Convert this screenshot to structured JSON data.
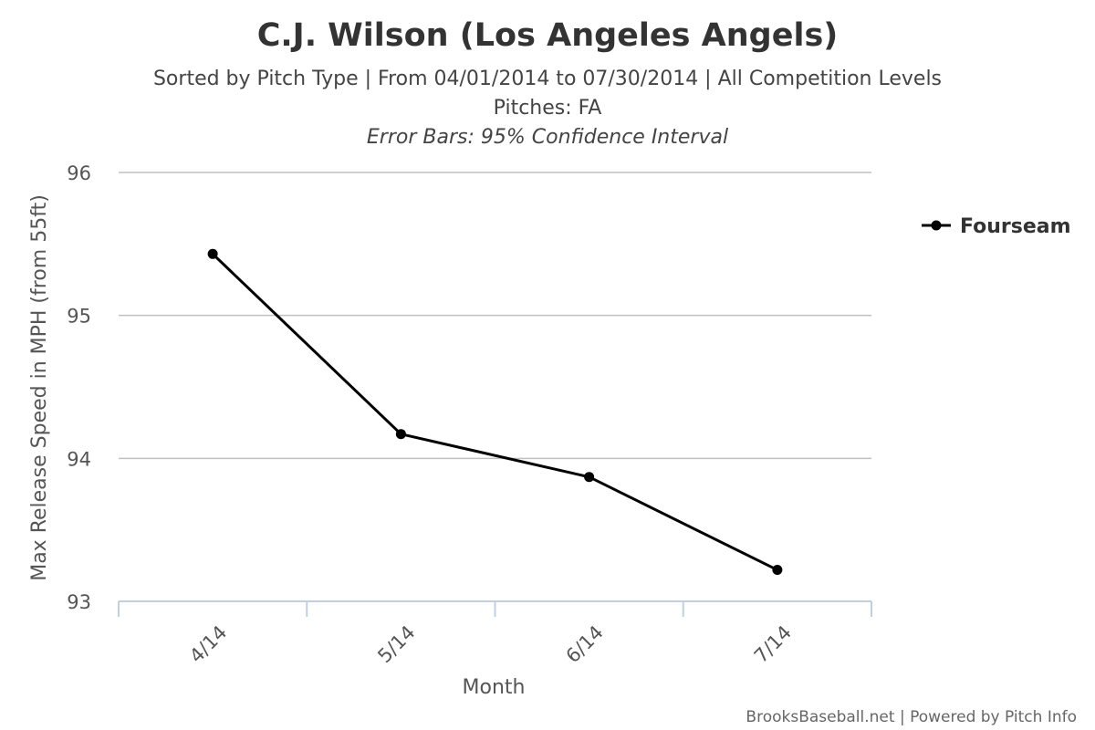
{
  "chart_data": {
    "type": "line",
    "title": "C.J. Wilson (Los Angeles Angels)",
    "subtitle_lines": [
      "Sorted by Pitch Type | From 04/01/2014 to 07/30/2014 | All Competition Levels",
      "Pitches: FA",
      "Error Bars: 95% Confidence Interval"
    ],
    "xlabel": "Month",
    "ylabel": "Max Release Speed in MPH (from 55ft)",
    "categories": [
      "4/14",
      "5/14",
      "6/14",
      "7/14"
    ],
    "ylim": [
      93,
      96
    ],
    "yticks": [
      93,
      94,
      95,
      96
    ],
    "grid": true,
    "legend_position": "right",
    "series": [
      {
        "name": "Fourseam",
        "color": "#000000",
        "values": [
          95.43,
          94.17,
          93.87,
          93.22
        ]
      }
    ]
  },
  "credit": "BrooksBaseball.net | Powered by Pitch Info"
}
